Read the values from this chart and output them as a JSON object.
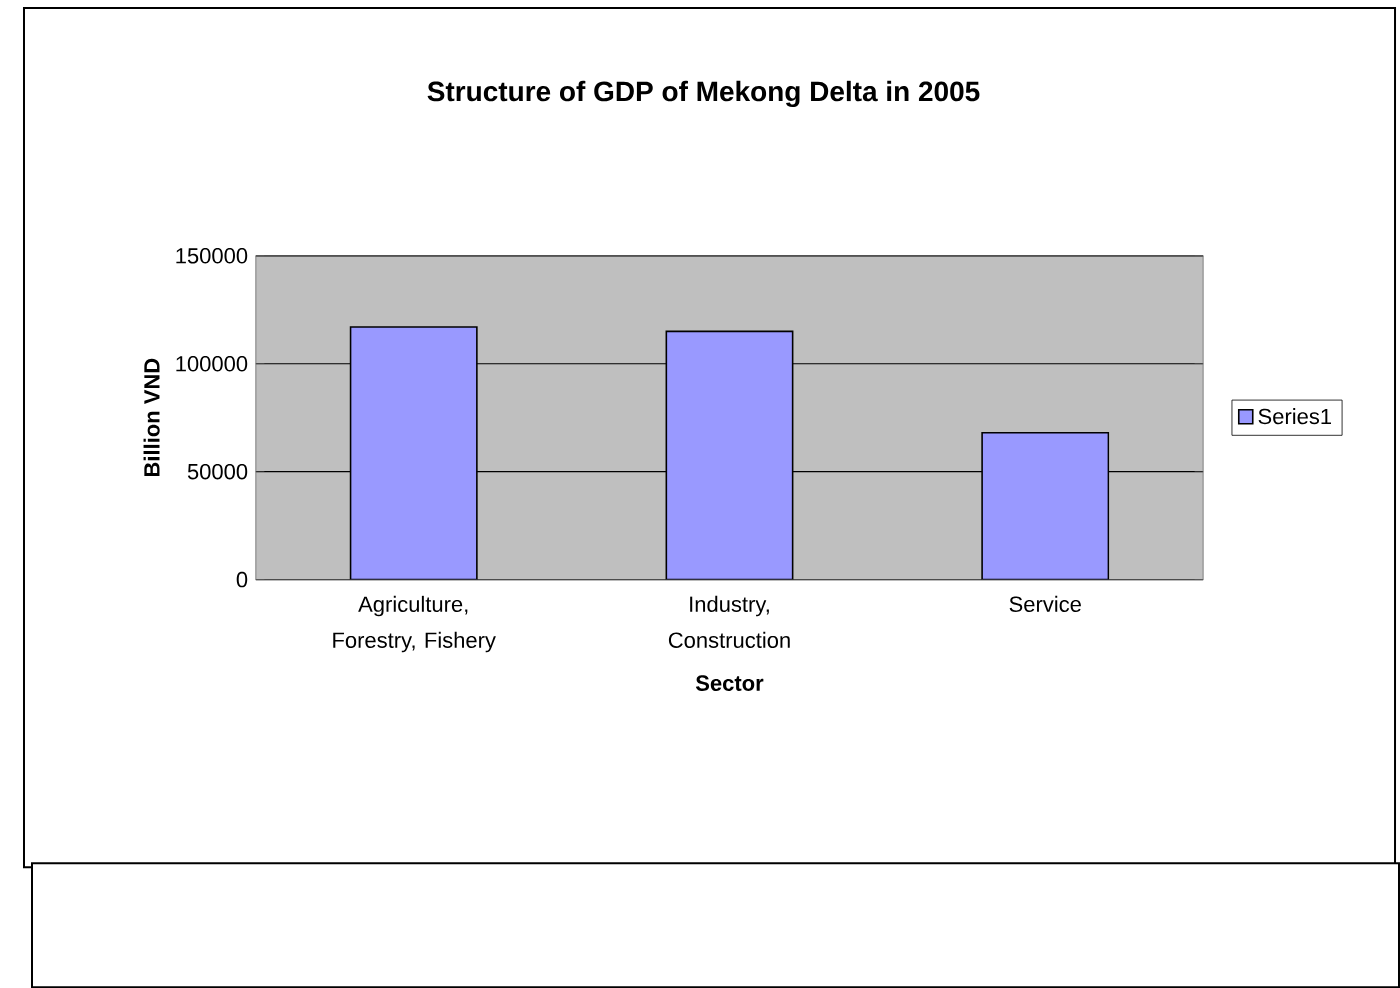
{
  "chart_data": {
    "type": "bar",
    "title": "Structure of GDP of Mekong Delta in 2005",
    "xlabel": "Sector",
    "ylabel": "Billion VND",
    "categories": [
      "Agriculture, Forestry, Fishery",
      "Industry, Construction",
      "Service"
    ],
    "series": [
      {
        "name": "Series1",
        "color": "#9999ff",
        "values": [
          117000,
          115000,
          68000
        ]
      }
    ],
    "ylim": [
      0,
      150000
    ],
    "yticks": [
      0,
      50000,
      100000,
      150000
    ],
    "grid": "y",
    "legend": "right"
  }
}
